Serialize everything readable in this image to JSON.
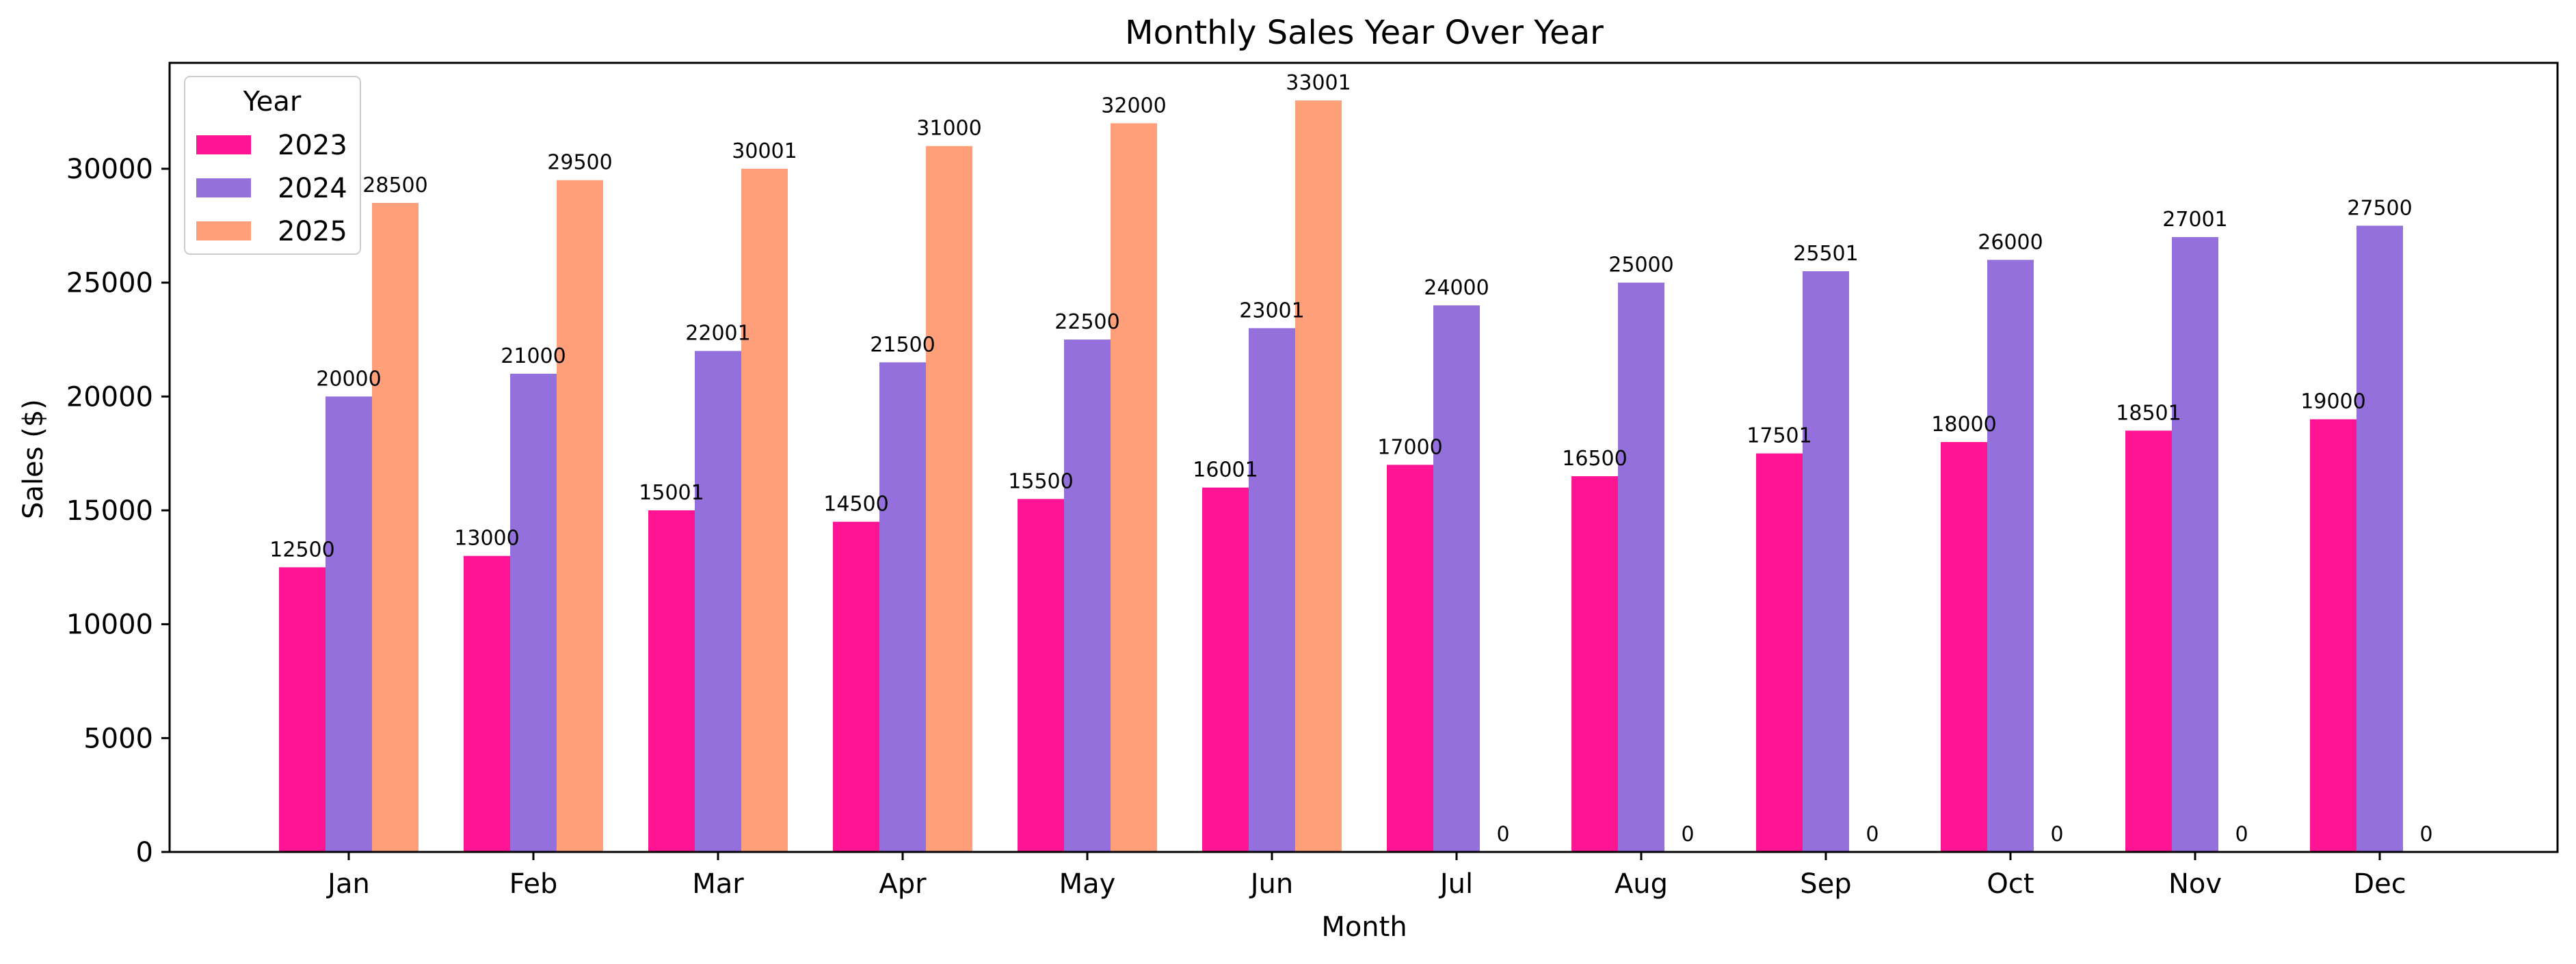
{
  "chart_data": {
    "type": "bar",
    "title": "Monthly Sales Year Over Year",
    "xlabel": "Month",
    "ylabel": "Sales ($)",
    "categories": [
      "Jan",
      "Feb",
      "Mar",
      "Apr",
      "May",
      "Jun",
      "Jul",
      "Aug",
      "Sep",
      "Oct",
      "Nov",
      "Dec"
    ],
    "series": [
      {
        "name": "2023",
        "color": "#ff1493",
        "values": [
          12500,
          13000,
          15001,
          14500,
          15500,
          16001,
          17000,
          16500,
          17501,
          18000,
          18501,
          19000
        ]
      },
      {
        "name": "2024",
        "color": "#9370db",
        "values": [
          20000,
          21000,
          22001,
          21500,
          22500,
          23001,
          24000,
          25000,
          25501,
          26000,
          27001,
          27500
        ]
      },
      {
        "name": "2025",
        "color": "#ffa07a",
        "values": [
          28500,
          29500,
          30001,
          31000,
          32000,
          33001,
          0,
          0,
          0,
          0,
          0,
          0
        ]
      }
    ],
    "ylim": [
      0,
      34651
    ],
    "yticks": [
      0,
      5000,
      10000,
      15000,
      20000,
      25000,
      30000
    ],
    "grid": false,
    "legend": {
      "title": "Year",
      "position": "top-left"
    }
  }
}
